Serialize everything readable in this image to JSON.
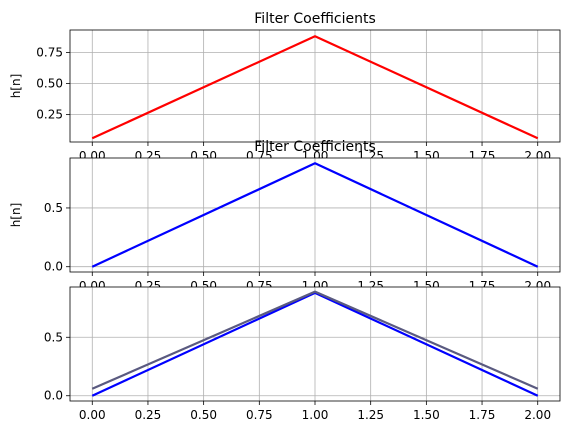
{
  "chart_data": [
    {
      "type": "line",
      "title": "Filter Coefficients",
      "ylabel": "h[n]",
      "xlabel": "",
      "xlim": [
        -0.1,
        2.1
      ],
      "ylim": [
        0.03,
        0.93
      ],
      "x_ticks": [
        0.0,
        0.25,
        0.5,
        0.75,
        1.0,
        1.25,
        1.5,
        1.75,
        2.0
      ],
      "x_tick_labels": [
        "0.00",
        "0.25",
        "0.50",
        "0.75",
        "1.00",
        "1.25",
        "1.50",
        "1.75",
        "2.00"
      ],
      "y_ticks": [
        0.25,
        0.5,
        0.75
      ],
      "y_tick_labels": [
        "0.25",
        "0.50",
        "0.75"
      ],
      "grid": true,
      "series": [
        {
          "color": "#ff0000",
          "x": [
            0,
            1,
            2
          ],
          "values": [
            0.06,
            0.88,
            0.06
          ]
        }
      ]
    },
    {
      "type": "line",
      "title": "Filter Coefficients",
      "ylabel": "h[n]",
      "xlabel": "",
      "xlim": [
        -0.1,
        2.1
      ],
      "ylim": [
        -0.045,
        0.925
      ],
      "x_ticks": [
        0.0,
        0.25,
        0.5,
        0.75,
        1.0,
        1.25,
        1.5,
        1.75,
        2.0
      ],
      "x_tick_labels": [
        "0.00",
        "0.25",
        "0.50",
        "0.75",
        "1.00",
        "1.25",
        "1.50",
        "1.75",
        "2.00"
      ],
      "y_ticks": [
        0.0,
        0.5
      ],
      "y_tick_labels": [
        "0.0",
        "0.5"
      ],
      "grid": true,
      "series": [
        {
          "color": "#0000ff",
          "x": [
            0,
            1,
            2
          ],
          "values": [
            0.0,
            0.88,
            0.0
          ]
        }
      ]
    },
    {
      "type": "line",
      "title": "",
      "ylabel": "",
      "xlabel": "",
      "xlim": [
        -0.1,
        2.1
      ],
      "ylim": [
        -0.045,
        0.93
      ],
      "x_ticks": [
        0.0,
        0.25,
        0.5,
        0.75,
        1.0,
        1.25,
        1.5,
        1.75,
        2.0
      ],
      "x_tick_labels": [
        "0.00",
        "0.25",
        "0.50",
        "0.75",
        "1.00",
        "1.25",
        "1.50",
        "1.75",
        "2.00"
      ],
      "y_ticks": [
        0.0,
        0.5
      ],
      "y_tick_labels": [
        "0.0",
        "0.5"
      ],
      "grid": true,
      "series": [
        {
          "color": "#0000ff",
          "x": [
            0,
            1,
            2
          ],
          "values": [
            0.0,
            0.88,
            0.0
          ]
        },
        {
          "color": "#5a5a80",
          "x": [
            0,
            1,
            2
          ],
          "values": [
            0.06,
            0.89,
            0.06
          ]
        }
      ]
    }
  ]
}
